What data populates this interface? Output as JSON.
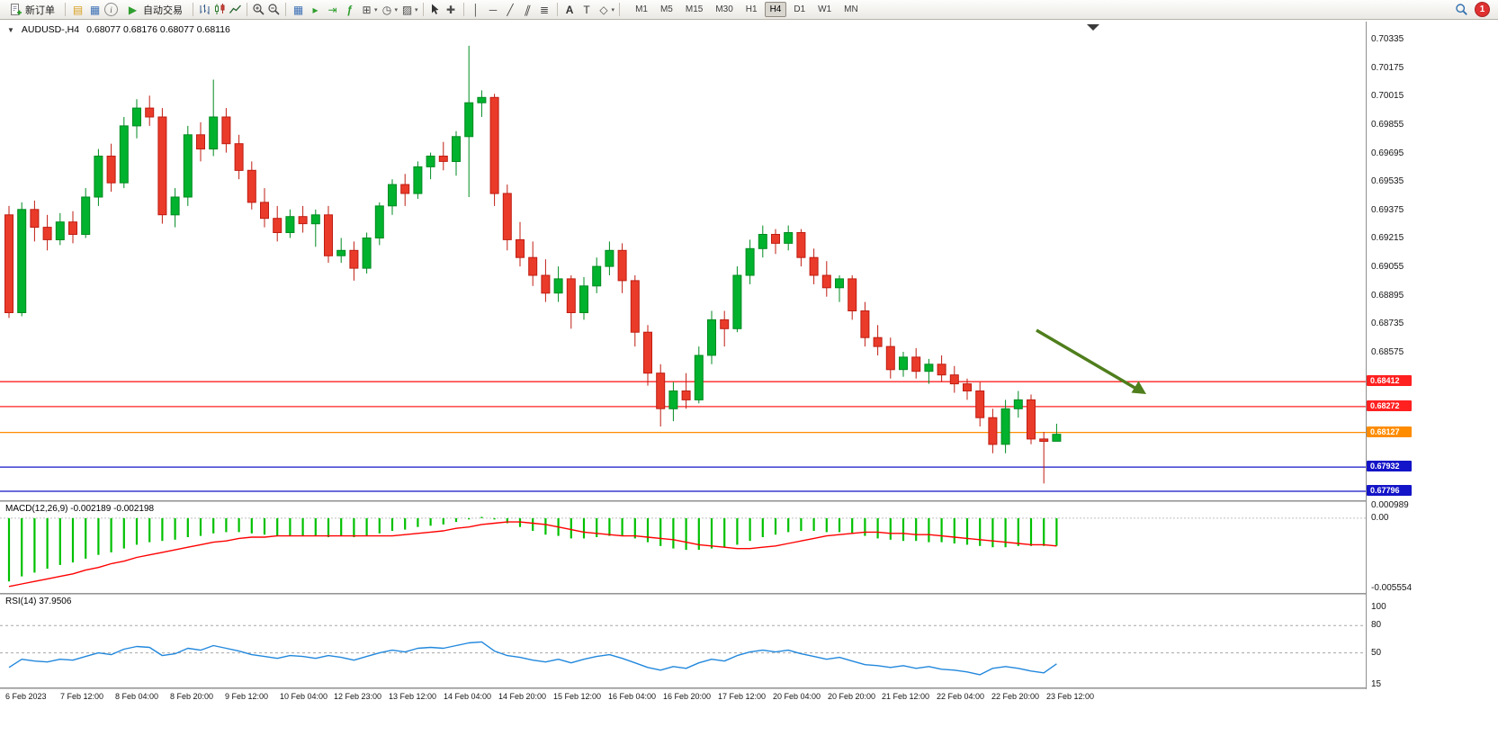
{
  "toolbar": {
    "new_order": "新订单",
    "auto_trading": "自动交易",
    "timeframes": [
      "M1",
      "M5",
      "M15",
      "M30",
      "H1",
      "H4",
      "D1",
      "W1",
      "MN"
    ],
    "active_timeframe": "H4",
    "notification_count": "1"
  },
  "icons": {
    "one_click_arrow": "▼",
    "charts_profile": "▤",
    "market_watch": "▦",
    "info": "i",
    "play": "▶",
    "tile_windows": "▦",
    "auto_scroll": "▸",
    "chart_shift": "⇥",
    "indicators": "ƒ",
    "new_chart": "⊞",
    "periods_clock": "◷",
    "templates": "▨",
    "crosshair": "✚",
    "vertical_line": "│",
    "horizontal_line": "─",
    "trendline": "╱",
    "channel": "∥",
    "fibonacci": "≣",
    "text_tool": "A",
    "label_tool": "T",
    "shapes": "◇",
    "caret": "▾"
  },
  "chart": {
    "one_click_arrow": "▼",
    "symbol_period": "AUDUSD-,H4",
    "quote_line": "0.68077 0.68176 0.68077 0.68116",
    "open": "0.68077",
    "high": "0.68176",
    "low": "0.68077",
    "close": "0.68116",
    "price_axis_labels": [
      "0.70335",
      "0.70175",
      "0.70015",
      "0.69855",
      "0.69695",
      "0.69535",
      "0.69375",
      "0.69215",
      "0.69055",
      "0.68895",
      "0.68735",
      "0.68575"
    ],
    "time_labels": [
      "6 Feb 2023",
      "7 Feb 12:00",
      "8 Feb 04:00",
      "8 Feb 20:00",
      "9 Feb 12:00",
      "10 Feb 04:00",
      "12 Feb 23:00",
      "13 Feb 12:00",
      "14 Feb 04:00",
      "14 Feb 20:00",
      "15 Feb 12:00",
      "16 Feb 04:00",
      "16 Feb 20:00",
      "17 Feb 12:00",
      "20 Feb 04:00",
      "20 Feb 20:00",
      "21 Feb 12:00",
      "22 Feb 04:00",
      "22 Feb 20:00",
      "23 Feb 12:00"
    ]
  },
  "indicators": {
    "macd_label": "MACD(12,26,9) -0.002189 -0.002198",
    "macd_scale": [
      "0.000989",
      "0.00",
      "-0.005554"
    ],
    "rsi_label": "RSI(14) 37.9506",
    "rsi_scale": [
      "100",
      "80",
      "50",
      "15"
    ]
  },
  "colors": {
    "candle_up": "#00b22d",
    "candle_up_border": "#008a21",
    "candle_down": "#ea3b2a",
    "candle_down_border": "#bf1d12",
    "macd_histogram": "#00c000",
    "macd_signal": "#ff0000",
    "rsi_line": "#2288dd",
    "arrow_green": "#4f7e1c",
    "badge_red": "#e03131"
  },
  "chart_data": [
    {
      "type": "candlestick",
      "title": "AUDUSD-,H4",
      "y_range": [
        0.6778,
        0.70335
      ],
      "levels": [
        {
          "price": 0.68412,
          "label": "0.68412",
          "color": "#ff2020"
        },
        {
          "price": 0.68272,
          "label": "0.68272",
          "color": "#ff2020"
        },
        {
          "price": 0.68127,
          "label": "0.68127",
          "color": "#ff8c00"
        },
        {
          "price": 0.67932,
          "label": "0.67932",
          "color": "#1414c8"
        },
        {
          "price": 0.67796,
          "label": "0.67796",
          "color": "#1414c8"
        }
      ],
      "candles": [
        [
          0.6935,
          0.694,
          0.6877,
          0.688
        ],
        [
          0.688,
          0.6942,
          0.6878,
          0.6938
        ],
        [
          0.6938,
          0.6943,
          0.692,
          0.6928
        ],
        [
          0.6928,
          0.6935,
          0.6915,
          0.6921
        ],
        [
          0.6921,
          0.6936,
          0.6918,
          0.6931
        ],
        [
          0.6931,
          0.6937,
          0.6919,
          0.6924
        ],
        [
          0.6924,
          0.695,
          0.6922,
          0.6945
        ],
        [
          0.6945,
          0.6972,
          0.694,
          0.6968
        ],
        [
          0.6968,
          0.6975,
          0.6948,
          0.6953
        ],
        [
          0.6953,
          0.699,
          0.695,
          0.6985
        ],
        [
          0.6985,
          0.7,
          0.6978,
          0.6995
        ],
        [
          0.6995,
          0.7002,
          0.6985,
          0.699
        ],
        [
          0.699,
          0.6995,
          0.693,
          0.6935
        ],
        [
          0.6935,
          0.695,
          0.6928,
          0.6945
        ],
        [
          0.6945,
          0.6985,
          0.694,
          0.698
        ],
        [
          0.698,
          0.6987,
          0.6965,
          0.6972
        ],
        [
          0.6972,
          0.7011,
          0.6968,
          0.699
        ],
        [
          0.699,
          0.6995,
          0.697,
          0.6975
        ],
        [
          0.6975,
          0.698,
          0.6955,
          0.696
        ],
        [
          0.696,
          0.6965,
          0.6938,
          0.6942
        ],
        [
          0.6942,
          0.695,
          0.6928,
          0.6933
        ],
        [
          0.6933,
          0.694,
          0.692,
          0.6925
        ],
        [
          0.6925,
          0.6938,
          0.6922,
          0.6934
        ],
        [
          0.6934,
          0.694,
          0.6925,
          0.693
        ],
        [
          0.693,
          0.6938,
          0.6917,
          0.6935
        ],
        [
          0.6935,
          0.694,
          0.6908,
          0.6912
        ],
        [
          0.6912,
          0.6922,
          0.6908,
          0.6915
        ],
        [
          0.6915,
          0.692,
          0.6898,
          0.6905
        ],
        [
          0.6905,
          0.6925,
          0.6902,
          0.6922
        ],
        [
          0.6922,
          0.6942,
          0.6918,
          0.694
        ],
        [
          0.694,
          0.6955,
          0.6935,
          0.6952
        ],
        [
          0.6952,
          0.6958,
          0.694,
          0.6947
        ],
        [
          0.6947,
          0.6965,
          0.6944,
          0.6962
        ],
        [
          0.6962,
          0.697,
          0.6955,
          0.6968
        ],
        [
          0.6968,
          0.6976,
          0.696,
          0.6965
        ],
        [
          0.6965,
          0.6982,
          0.6957,
          0.6979
        ],
        [
          0.6979,
          0.703,
          0.6945,
          0.6998
        ],
        [
          0.6998,
          0.7005,
          0.699,
          0.7001
        ],
        [
          0.7001,
          0.7003,
          0.694,
          0.6947
        ],
        [
          0.6947,
          0.6952,
          0.6915,
          0.6921
        ],
        [
          0.6921,
          0.6931,
          0.6906,
          0.6911
        ],
        [
          0.6911,
          0.692,
          0.6895,
          0.6901
        ],
        [
          0.6901,
          0.691,
          0.6886,
          0.6891
        ],
        [
          0.6891,
          0.6906,
          0.6886,
          0.6899
        ],
        [
          0.6899,
          0.6901,
          0.6871,
          0.688
        ],
        [
          0.688,
          0.69,
          0.6876,
          0.6895
        ],
        [
          0.6895,
          0.6911,
          0.6891,
          0.6906
        ],
        [
          0.6906,
          0.692,
          0.6901,
          0.6915
        ],
        [
          0.6915,
          0.6919,
          0.6891,
          0.6898
        ],
        [
          0.6898,
          0.6901,
          0.6861,
          0.6869
        ],
        [
          0.6869,
          0.6873,
          0.6839,
          0.6846
        ],
        [
          0.6846,
          0.6851,
          0.6816,
          0.6826
        ],
        [
          0.6826,
          0.6841,
          0.6819,
          0.6836
        ],
        [
          0.6836,
          0.6846,
          0.6826,
          0.6831
        ],
        [
          0.6831,
          0.6861,
          0.6829,
          0.6856
        ],
        [
          0.6856,
          0.6881,
          0.6851,
          0.6876
        ],
        [
          0.6876,
          0.6881,
          0.6861,
          0.6871
        ],
        [
          0.6871,
          0.6906,
          0.6869,
          0.6901
        ],
        [
          0.6901,
          0.6921,
          0.6896,
          0.6916
        ],
        [
          0.6916,
          0.6929,
          0.6911,
          0.6924
        ],
        [
          0.6924,
          0.6927,
          0.6913,
          0.6919
        ],
        [
          0.6919,
          0.6929,
          0.6915,
          0.6925
        ],
        [
          0.6925,
          0.6927,
          0.6906,
          0.6911
        ],
        [
          0.6911,
          0.6916,
          0.6896,
          0.6901
        ],
        [
          0.6901,
          0.6909,
          0.6889,
          0.6894
        ],
        [
          0.6894,
          0.6901,
          0.6886,
          0.6899
        ],
        [
          0.6899,
          0.6901,
          0.6876,
          0.6881
        ],
        [
          0.6881,
          0.6886,
          0.6861,
          0.6866
        ],
        [
          0.6866,
          0.6873,
          0.6856,
          0.6861
        ],
        [
          0.6861,
          0.6866,
          0.6843,
          0.6848
        ],
        [
          0.6848,
          0.6858,
          0.6844,
          0.6855
        ],
        [
          0.6855,
          0.686,
          0.6843,
          0.6847
        ],
        [
          0.6847,
          0.6854,
          0.684,
          0.6851
        ],
        [
          0.6851,
          0.6856,
          0.6841,
          0.6845
        ],
        [
          0.6845,
          0.685,
          0.6835,
          0.684
        ],
        [
          0.684,
          0.6843,
          0.6831,
          0.6836
        ],
        [
          0.6836,
          0.6841,
          0.6816,
          0.6821
        ],
        [
          0.6821,
          0.6826,
          0.6801,
          0.6806
        ],
        [
          0.6806,
          0.6831,
          0.6801,
          0.6826
        ],
        [
          0.6826,
          0.6836,
          0.6821,
          0.6831
        ],
        [
          0.6831,
          0.6834,
          0.6806,
          0.6809
        ],
        [
          0.6809,
          0.6813,
          0.6784,
          0.68077
        ],
        [
          0.68077,
          0.68176,
          0.68077,
          0.68116
        ]
      ]
    },
    {
      "type": "bar",
      "name": "MACD(12,26,9)",
      "current_values": [
        -0.002189,
        -0.002198
      ],
      "y_range": [
        -0.005554,
        0.000989
      ],
      "values": [
        -0.005,
        -0.0046,
        -0.0043,
        -0.004,
        -0.0037,
        -0.0035,
        -0.0032,
        -0.0029,
        -0.0027,
        -0.0024,
        -0.0021,
        -0.0019,
        -0.0018,
        -0.0017,
        -0.0015,
        -0.0014,
        -0.0012,
        -0.0011,
        -0.0011,
        -0.0012,
        -0.0013,
        -0.0014,
        -0.0014,
        -0.0014,
        -0.0014,
        -0.0015,
        -0.0014,
        -0.0015,
        -0.0014,
        -0.0012,
        -0.001,
        -0.0009,
        -0.0007,
        -0.0006,
        -0.0005,
        -0.0003,
        -0.0001,
        0.0001,
        -0.0001,
        -0.0004,
        -0.0007,
        -0.001,
        -0.0013,
        -0.0014,
        -0.0016,
        -0.0016,
        -0.0015,
        -0.0014,
        -0.0014,
        -0.0016,
        -0.0019,
        -0.0022,
        -0.0024,
        -0.0025,
        -0.0025,
        -0.0024,
        -0.0023,
        -0.0021,
        -0.0018,
        -0.0015,
        -0.0013,
        -0.0011,
        -0.001,
        -0.001,
        -0.0011,
        -0.0011,
        -0.0012,
        -0.0014,
        -0.0016,
        -0.0017,
        -0.0018,
        -0.0018,
        -0.0019,
        -0.0019,
        -0.002,
        -0.0021,
        -0.0022,
        -0.0023,
        -0.0023,
        -0.0022,
        -0.0022,
        -0.0022,
        -0.002189
      ],
      "signal": [
        -0.0054,
        -0.0052,
        -0.005,
        -0.0048,
        -0.0046,
        -0.0044,
        -0.0041,
        -0.0039,
        -0.0036,
        -0.0034,
        -0.0031,
        -0.0029,
        -0.0027,
        -0.0025,
        -0.0023,
        -0.0021,
        -0.0019,
        -0.0018,
        -0.0016,
        -0.0015,
        -0.0015,
        -0.0014,
        -0.0014,
        -0.0014,
        -0.0014,
        -0.0014,
        -0.0014,
        -0.0014,
        -0.0014,
        -0.0014,
        -0.0014,
        -0.0013,
        -0.0012,
        -0.0011,
        -0.001,
        -0.0008,
        -0.0007,
        -0.0005,
        -0.0004,
        -0.0003,
        -0.0003,
        -0.0004,
        -0.0005,
        -0.0007,
        -0.0009,
        -0.0011,
        -0.0012,
        -0.0013,
        -0.0014,
        -0.0014,
        -0.0015,
        -0.0016,
        -0.0017,
        -0.0019,
        -0.0021,
        -0.0022,
        -0.0023,
        -0.0024,
        -0.0024,
        -0.0023,
        -0.0022,
        -0.002,
        -0.0018,
        -0.0016,
        -0.0014,
        -0.0013,
        -0.0012,
        -0.0011,
        -0.0011,
        -0.0012,
        -0.0012,
        -0.0013,
        -0.0013,
        -0.0014,
        -0.0015,
        -0.0016,
        -0.0017,
        -0.0018,
        -0.0019,
        -0.002,
        -0.0021,
        -0.0021,
        -0.002198
      ]
    },
    {
      "type": "line",
      "name": "RSI(14)",
      "current_value": 37.9506,
      "y_range": [
        15,
        100
      ],
      "level_lines": [
        80,
        50
      ],
      "values": [
        34,
        43,
        41,
        40,
        43,
        42,
        46,
        50,
        48,
        54,
        57,
        56,
        47,
        49,
        55,
        53,
        58,
        55,
        52,
        48,
        46,
        44,
        47,
        46,
        44,
        47,
        45,
        42,
        46,
        50,
        53,
        51,
        55,
        56,
        55,
        58,
        61,
        62,
        52,
        47,
        45,
        42,
        40,
        43,
        39,
        43,
        46,
        48,
        44,
        39,
        34,
        31,
        35,
        33,
        39,
        43,
        41,
        47,
        51,
        53,
        51,
        53,
        49,
        46,
        43,
        45,
        41,
        37,
        36,
        34,
        36,
        33,
        35,
        32,
        31,
        29,
        26,
        33,
        35,
        33,
        30,
        28,
        37.95
      ]
    }
  ]
}
